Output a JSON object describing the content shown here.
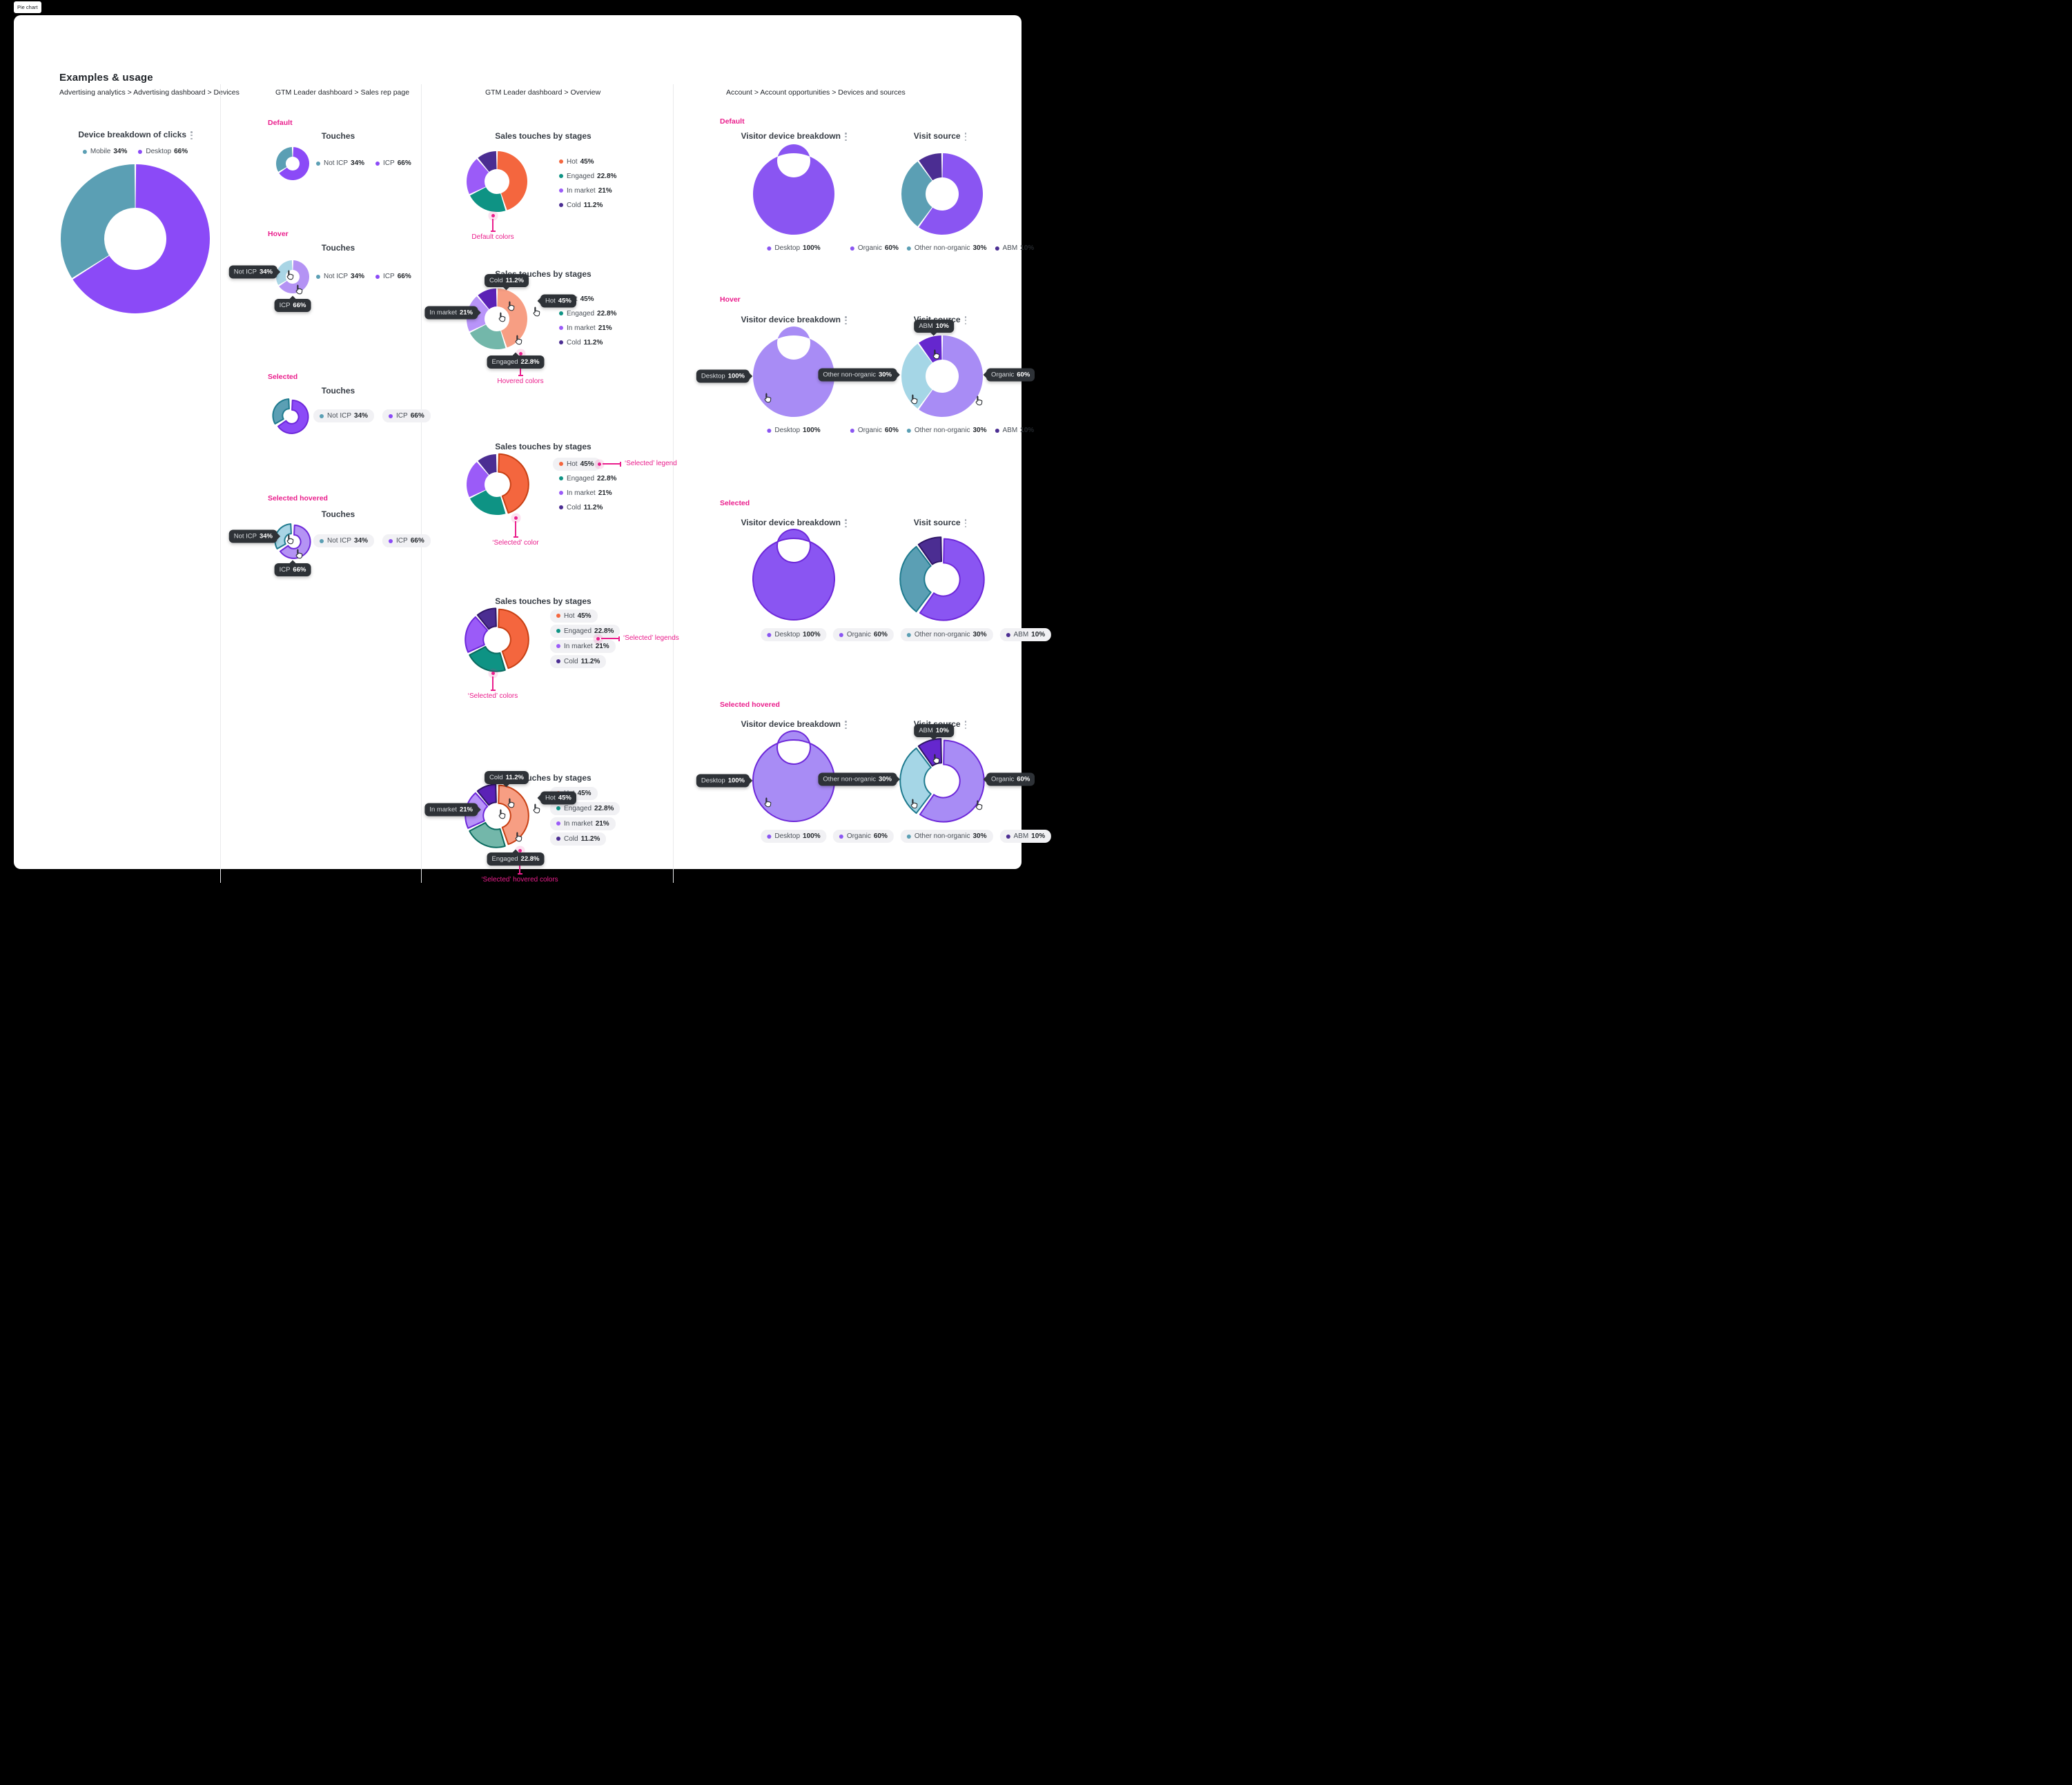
{
  "tab_label": "Pie chart",
  "heading": "Examples & usage",
  "ui": {
    "accent_pink": "#EA1E8C",
    "tooltip_bg": "#2E3237",
    "legend_pill_bg": "#F1F1F4",
    "card_bg": "#FFFFFF",
    "page_bg": "#000000",
    "title_color": "#363C44"
  },
  "columns": [
    {
      "breadcrumb": "Advertising analytics > Advertising dashboard > Devices"
    },
    {
      "breadcrumb": "GTM Leader dashboard > Sales rep page",
      "state_labels": [
        "Default",
        "Hover",
        "Selected",
        "Selected hovered"
      ]
    },
    {
      "breadcrumb": "GTM Leader dashboard > Overview",
      "annotations": [
        "Default colors",
        "Hovered colors",
        "‘Selected’ legend",
        "‘Selected’ color",
        "‘Selected’ legends",
        "‘Selected’ colors",
        "‘Selected’ hovered colors"
      ]
    },
    {
      "breadcrumb": "Account > Account opportunities > Devices and sources",
      "state_labels": [
        "Default",
        "Hover",
        "Selected",
        "Selected hovered"
      ]
    }
  ],
  "chart_data": [
    {
      "id": "device-breakdown-of-clicks",
      "type": "donut",
      "title": "Device breakdown of clicks",
      "labels": [
        "Mobile",
        "Desktop"
      ],
      "values": [
        34,
        66
      ],
      "value_labels": [
        "34%",
        "66%"
      ],
      "colors": [
        "#5B9FB4",
        "#8B4AF7"
      ],
      "hover_colors": [
        "#A9D5E5",
        "#B493F4"
      ],
      "selected_outline_colors": [
        "#1E7A8E",
        "#6D28D9"
      ],
      "draw_order": [
        1,
        0
      ],
      "legend_position": "top"
    },
    {
      "id": "touches",
      "type": "donut",
      "title": "Touches",
      "labels": [
        "Not ICP",
        "ICP"
      ],
      "values": [
        34,
        66
      ],
      "value_labels": [
        "34%",
        "66%"
      ],
      "colors": [
        "#5B9FB4",
        "#8B4AF7"
      ],
      "hover_colors": [
        "#A9D5E5",
        "#B493F4"
      ],
      "selected_outline_colors": [
        "#1E7A8E",
        "#6D28D9"
      ],
      "draw_order": [
        1,
        0
      ],
      "legend_position": "right"
    },
    {
      "id": "sales-touches-by-stages",
      "type": "donut",
      "title": "Sales touches by stages",
      "labels": [
        "Hot",
        "Engaged",
        "In market",
        "Cold"
      ],
      "values": [
        45,
        22.8,
        21,
        11.2
      ],
      "value_labels": [
        "45%",
        "22.8%",
        "21%",
        "11.2%"
      ],
      "colors": [
        "#F4663E",
        "#0E9384",
        "#9B5BF8",
        "#4B2D92"
      ],
      "hover_colors": [
        "#F79E83",
        "#73B7AA",
        "#B894F9",
        "#5B21B6"
      ],
      "selected_outline_colors": [
        "#C84014",
        "#0A6A5F",
        "#6D28D9",
        "#2E1566"
      ],
      "draw_order": [
        0,
        1,
        2,
        3
      ],
      "legend_position": "right"
    },
    {
      "id": "visitor-device-breakdown",
      "type": "donut",
      "title": "Visitor device breakdown",
      "labels": [
        "Desktop"
      ],
      "values": [
        100
      ],
      "value_labels": [
        "100%"
      ],
      "colors": [
        "#8A55F2"
      ],
      "hover_colors": [
        "#A88CF5"
      ],
      "selected_outline_colors": [
        "#6D28D9"
      ],
      "draw_order": [
        0
      ],
      "legend_position": "bottom"
    },
    {
      "id": "visit-source",
      "type": "donut",
      "title": "Visit source",
      "labels": [
        "Organic",
        "Other non-organic",
        "ABM"
      ],
      "values": [
        60,
        30,
        10
      ],
      "value_labels": [
        "60%",
        "30%",
        "10%"
      ],
      "colors": [
        "#8A55F2",
        "#5B9FB4",
        "#4B2D92"
      ],
      "hover_colors": [
        "#A88CF5",
        "#A5D6E6",
        "#6527CE"
      ],
      "selected_outline_colors": [
        "#6D28D9",
        "#1E7A8E",
        "#2E1566"
      ],
      "draw_order": [
        0,
        1,
        2
      ],
      "legend_position": "bottom"
    }
  ]
}
